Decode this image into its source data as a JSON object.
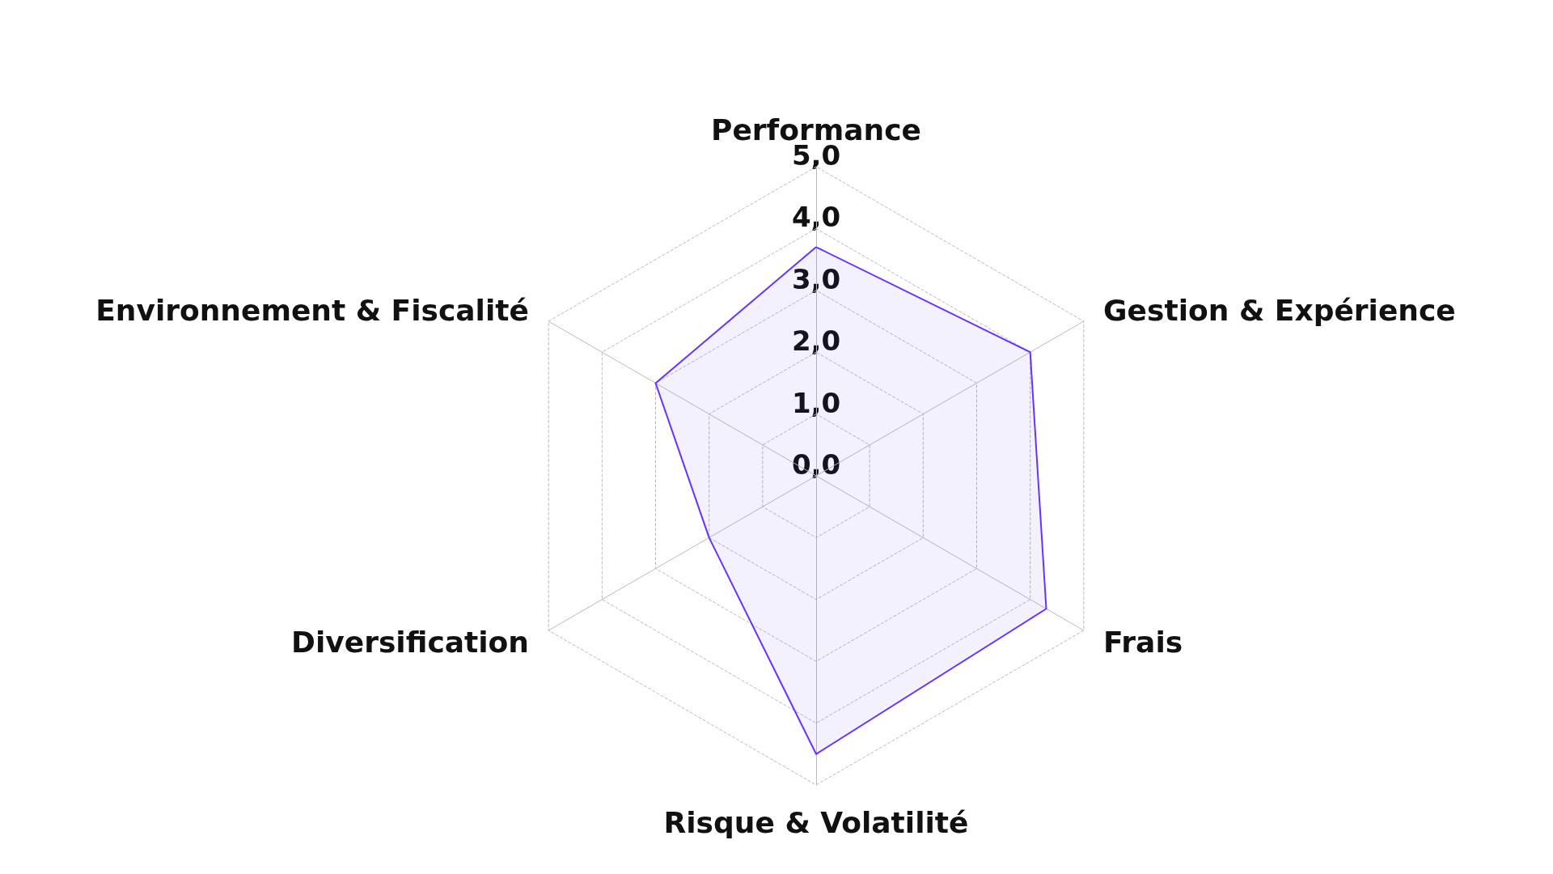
{
  "chart_data": {
    "type": "radar",
    "categories": [
      "Performance",
      "Gestion & Expérience",
      "Frais",
      "Risque & Volatilité",
      "Diversification",
      "Environnement & Fiscalité"
    ],
    "series": [
      {
        "color": "#6633ff",
        "values": [
          3.7,
          4.0,
          4.3,
          4.5,
          2.0,
          3.0
        ]
      }
    ],
    "ylim": [
      0,
      5
    ],
    "yticks": [
      {
        "value": 0,
        "label": "0,0"
      },
      {
        "value": 1,
        "label": "1,0"
      },
      {
        "value": 2,
        "label": "2,0"
      },
      {
        "value": 3,
        "label": "3,0"
      },
      {
        "value": 4,
        "label": "4,0"
      },
      {
        "value": 5,
        "label": "5,0"
      }
    ],
    "grid": true
  }
}
